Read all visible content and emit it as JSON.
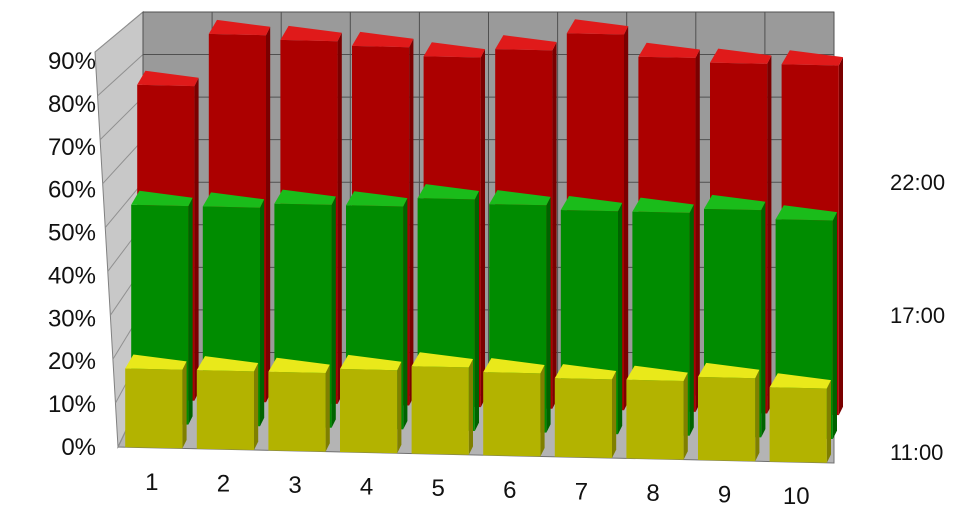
{
  "chart_data": {
    "type": "bar",
    "variant": "3d-row-columns",
    "title": "",
    "xlabel": "",
    "ylabel": "",
    "categories": [
      "1",
      "2",
      "3",
      "4",
      "5",
      "6",
      "7",
      "8",
      "9",
      "10"
    ],
    "ylim": [
      0,
      90
    ],
    "yticks": [
      "0%",
      "10%",
      "20%",
      "30%",
      "40%",
      "50%",
      "60%",
      "70%",
      "80%",
      "90%"
    ],
    "grid": true,
    "legend": "none",
    "series": [
      {
        "name": "22:00",
        "color": "#dd0000",
        "values": [
          72,
          84,
          83,
          82,
          80,
          82,
          86,
          81,
          80,
          80
        ]
      },
      {
        "name": "17:00",
        "color": "#00b400",
        "values": [
          50,
          50,
          51,
          51,
          53,
          52,
          51,
          51,
          52,
          50
        ]
      },
      {
        "name": "11:00",
        "color": "#e6e600",
        "values": [
          18,
          18,
          18,
          19,
          20,
          19,
          18,
          18,
          19,
          17
        ]
      }
    ],
    "colors": {
      "back_wall": "#9a9a9a",
      "side_wall": "#c8c8c8",
      "floor": "#b4b4b4",
      "grid": "#505050"
    }
  }
}
